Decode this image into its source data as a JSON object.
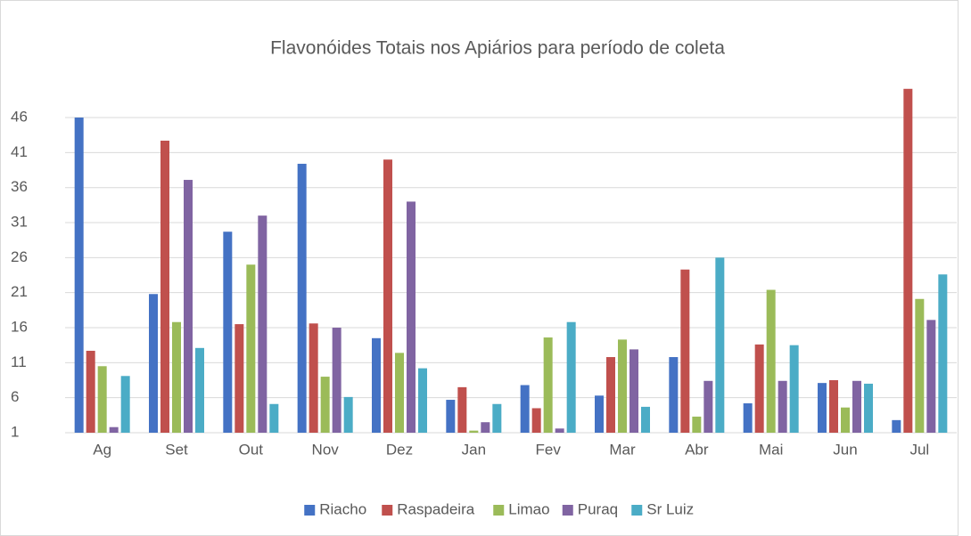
{
  "chart_data": {
    "type": "bar",
    "title": "Flavonóides Totais nos Apiários para período de coleta",
    "categories": [
      "Ag",
      "Set",
      "Out",
      "Nov",
      "Dez",
      "Jan",
      "Fev",
      "Mar",
      "Abr",
      "Mai",
      "Jun",
      "Jul"
    ],
    "series": [
      {
        "name": "Riacho",
        "color": "#4472c4",
        "values": [
          46,
          20.8,
          29.7,
          39.4,
          14.5,
          5.7,
          7.8,
          6.3,
          11.8,
          5.2,
          8.1,
          2.8
        ]
      },
      {
        "name": "Raspadeira",
        "color": "#c0504d",
        "values": [
          12.7,
          42.7,
          16.5,
          16.6,
          40,
          7.5,
          4.5,
          11.8,
          24.3,
          13.6,
          8.5,
          50.1
        ]
      },
      {
        "name": "Limao",
        "color": "#9bbb59",
        "values": [
          10.5,
          16.8,
          25,
          9,
          12.4,
          1.3,
          14.6,
          14.3,
          3.3,
          21.4,
          4.6,
          20.1
        ]
      },
      {
        "name": "Puraq",
        "color": "#8064a2",
        "values": [
          1.8,
          37.1,
          32,
          16,
          34,
          2.5,
          1.6,
          12.9,
          8.4,
          8.4,
          8.4,
          17.1
        ]
      },
      {
        "name": "Sr Luiz",
        "color": "#4bacc6",
        "values": [
          9.1,
          13.1,
          5.1,
          6.1,
          10.2,
          5.1,
          16.8,
          4.7,
          26,
          13.5,
          8,
          23.6
        ]
      }
    ],
    "ylim": [
      1,
      51
    ],
    "yticks": [
      1,
      6,
      11,
      16,
      21,
      26,
      31,
      36,
      41,
      46
    ],
    "grid": true,
    "legend": "bottom"
  }
}
